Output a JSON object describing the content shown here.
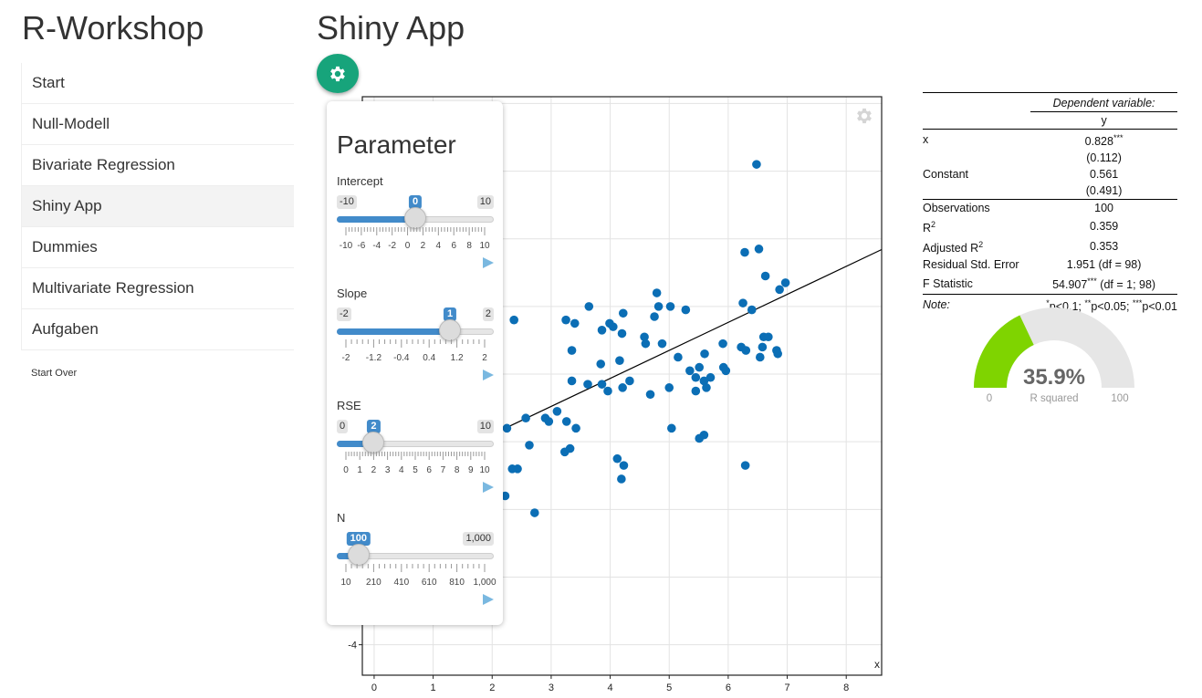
{
  "app_title": "R-Workshop",
  "nav": {
    "items": [
      {
        "label": "Start"
      },
      {
        "label": "Null-Modell"
      },
      {
        "label": "Bivariate Regression"
      },
      {
        "label": "Shiny App",
        "active": true
      },
      {
        "label": "Dummies"
      },
      {
        "label": "Multivariate Regression"
      },
      {
        "label": "Aufgaben"
      }
    ],
    "start_over": "Start Over"
  },
  "page_title": "Shiny App",
  "parameters": {
    "title": "Parameter",
    "sliders": [
      {
        "label": "Intercept",
        "min_label": "-10",
        "max_label": "10",
        "value_label": "0",
        "min": -10,
        "max": 10,
        "value": 0,
        "tick_labels": [
          "-10",
          "-6",
          "-4",
          "-2",
          "0",
          "2",
          "4",
          "6",
          "8",
          "10"
        ]
      },
      {
        "label": "Slope",
        "min_label": "-2",
        "max_label": "2",
        "value_label": "1",
        "min": -2,
        "max": 2,
        "value": 1,
        "tick_labels": [
          "-2",
          "-1.2",
          "-0.4",
          "0.4",
          "1.2",
          "2"
        ]
      },
      {
        "label": "RSE",
        "min_label": "0",
        "max_label": "10",
        "value_label": "2",
        "min": 0,
        "max": 10,
        "value": 2,
        "tick_labels": [
          "0",
          "1",
          "2",
          "3",
          "4",
          "5",
          "6",
          "7",
          "8",
          "9",
          "10"
        ]
      },
      {
        "label": "N",
        "min_label": "10",
        "max_label": "1,000",
        "value_label": "100",
        "min": 10,
        "max": 1000,
        "value": 100,
        "tick_labels": [
          "10",
          "210",
          "410",
          "610",
          "810",
          "1,000"
        ]
      }
    ]
  },
  "chart_data": {
    "type": "scatter",
    "xlabel": "x",
    "ylabel": "",
    "x_ticks": [
      "0",
      "1",
      "2",
      "3",
      "4",
      "5",
      "6",
      "7",
      "8"
    ],
    "y_ticks_visible": [
      "-4"
    ],
    "xlim": [
      -0.2,
      8.6
    ],
    "ylim": [
      -4.9,
      12.2
    ],
    "point_color": "#0b6eb5",
    "regression_line": {
      "intercept": 0.561,
      "slope": 0.828
    },
    "points": [
      [
        6.48,
        10.2
      ],
      [
        6.28,
        7.6
      ],
      [
        6.52,
        7.7
      ],
      [
        6.63,
        6.9
      ],
      [
        6.97,
        6.7
      ],
      [
        6.87,
        6.5
      ],
      [
        4.79,
        6.4
      ],
      [
        6.25,
        6.1
      ],
      [
        6.4,
        5.9
      ],
      [
        5.02,
        6.0
      ],
      [
        4.82,
        6.0
      ],
      [
        5.28,
        5.9
      ],
      [
        3.64,
        6.0
      ],
      [
        4.22,
        5.8
      ],
      [
        4.75,
        5.7
      ],
      [
        3.25,
        5.6
      ],
      [
        2.37,
        5.6
      ],
      [
        3.4,
        5.5
      ],
      [
        3.99,
        5.5
      ],
      [
        4.05,
        5.4
      ],
      [
        4.2,
        5.2
      ],
      [
        3.86,
        5.3
      ],
      [
        4.58,
        5.1
      ],
      [
        4.88,
        4.9
      ],
      [
        4.6,
        4.9
      ],
      [
        6.6,
        5.1
      ],
      [
        6.68,
        5.1
      ],
      [
        6.58,
        4.8
      ],
      [
        6.82,
        4.7
      ],
      [
        6.84,
        4.6
      ],
      [
        6.54,
        4.5
      ],
      [
        5.91,
        4.9
      ],
      [
        6.22,
        4.8
      ],
      [
        6.3,
        4.7
      ],
      [
        3.35,
        4.7
      ],
      [
        3.84,
        4.3
      ],
      [
        4.16,
        4.4
      ],
      [
        5.15,
        4.5
      ],
      [
        5.6,
        4.6
      ],
      [
        5.51,
        4.2
      ],
      [
        5.35,
        4.1
      ],
      [
        5.92,
        4.2
      ],
      [
        5.96,
        4.1
      ],
      [
        5.7,
        3.9
      ],
      [
        5.59,
        3.8
      ],
      [
        5.45,
        3.9
      ],
      [
        4.33,
        3.8
      ],
      [
        3.86,
        3.7
      ],
      [
        3.35,
        3.8
      ],
      [
        3.62,
        3.7
      ],
      [
        4.21,
        3.6
      ],
      [
        5.63,
        3.6
      ],
      [
        5.45,
        3.5
      ],
      [
        5.0,
        3.6
      ],
      [
        3.96,
        3.5
      ],
      [
        4.68,
        3.4
      ],
      [
        3.1,
        2.9
      ],
      [
        2.57,
        2.7
      ],
      [
        2.9,
        2.7
      ],
      [
        2.96,
        2.6
      ],
      [
        3.26,
        2.6
      ],
      [
        3.42,
        2.4
      ],
      [
        2.25,
        2.4
      ],
      [
        5.04,
        2.4
      ],
      [
        5.59,
        2.2
      ],
      [
        5.51,
        2.1
      ],
      [
        2.63,
        1.9
      ],
      [
        3.32,
        1.8
      ],
      [
        3.23,
        1.7
      ],
      [
        4.12,
        1.5
      ],
      [
        4.23,
        1.3
      ],
      [
        2.43,
        1.2
      ],
      [
        2.34,
        1.2
      ],
      [
        6.29,
        1.3
      ],
      [
        4.19,
        0.9
      ],
      [
        2.22,
        0.4
      ],
      [
        2.72,
        -0.1
      ]
    ]
  },
  "regression_table": {
    "dependent_variable_label": "Dependent variable:",
    "dependent_variable": "y",
    "rows": [
      {
        "name": "x",
        "value": "0.828",
        "stars": "***"
      },
      {
        "name": "",
        "value": "(0.112)"
      },
      {
        "name": "Constant",
        "value": "0.561"
      },
      {
        "name": "",
        "value": "(0.491)"
      }
    ],
    "stats": [
      {
        "name": "Observations",
        "value": "100"
      },
      {
        "name": "R",
        "sup": "2",
        "value": "0.359"
      },
      {
        "name": "Adjusted R",
        "sup": "2",
        "value": "0.353"
      },
      {
        "name": "Residual Std. Error",
        "value": "1.951 (df = 98)"
      },
      {
        "name": "F Statistic",
        "value": "54.907",
        "stars": "***",
        "value_suffix": " (df = 1; 98)"
      }
    ],
    "note_label": "Note:",
    "note": {
      "p1_star": "*",
      "p1": "p<0.1; ",
      "p2_star": "**",
      "p2": "p<0.05; ",
      "p3_star": "***",
      "p3": "p<0.01"
    }
  },
  "gauge": {
    "value": 35.9,
    "value_label": "35.9%",
    "label": "R squared",
    "min_label": "0",
    "max_label": "100",
    "fill_color": "#7fd400",
    "track_color": "#e6e6e6"
  },
  "colors": {
    "accent_green": "#17a47b",
    "slider_blue": "#428bca"
  }
}
